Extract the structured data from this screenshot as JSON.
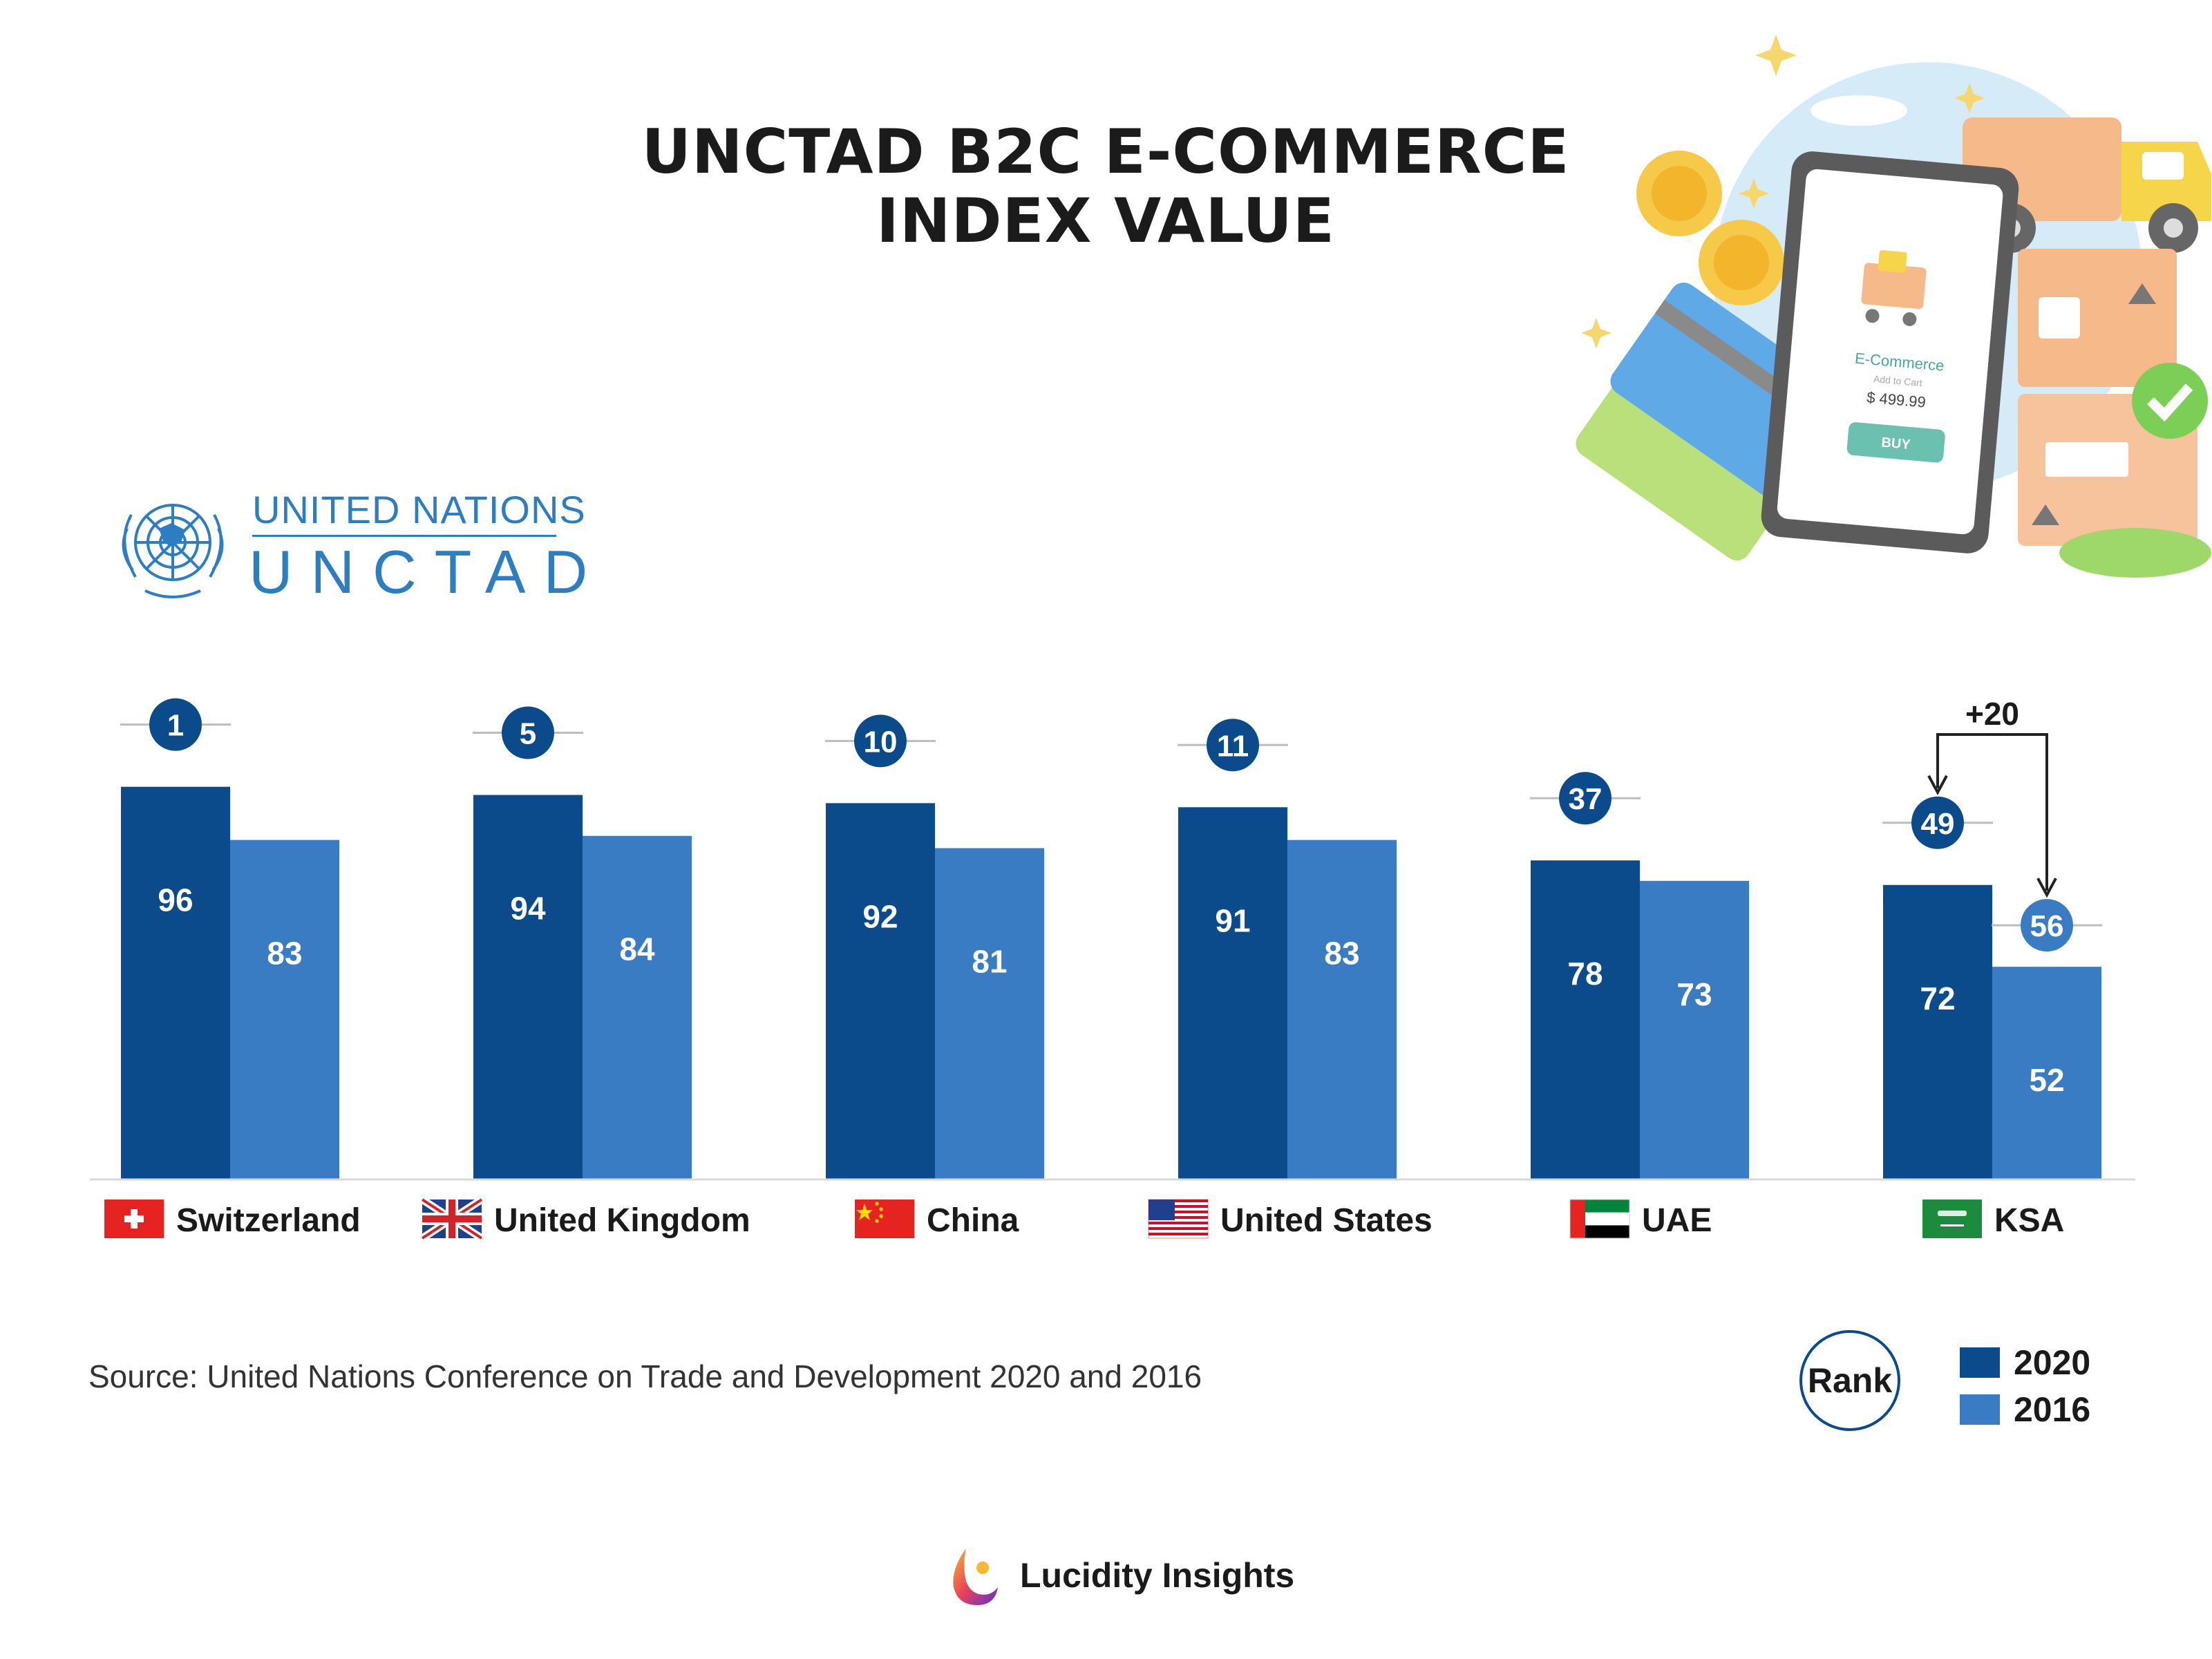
{
  "header": {
    "title_line1": "UNCTAD B2C E-COMMERCE",
    "title_line2": "INDEX VALUE"
  },
  "logo": {
    "line1": "UNITED NATIONS",
    "line2": "UNCTAD",
    "icon": "un-emblem-icon",
    "color": "#2d7dc1"
  },
  "illustration": {
    "phone_app_title": "E-Commerce",
    "phone_sub": "Add to Cart",
    "phone_price": "$ 499.99",
    "phone_button": "BUY"
  },
  "chart_data": {
    "type": "bar",
    "categories": [
      "Switzerland",
      "United Kingdom",
      "China",
      "United States",
      "UAE",
      "KSA"
    ],
    "flags": [
      "switzerland-flag-icon",
      "uk-flag-icon",
      "china-flag-icon",
      "usa-flag-icon",
      "uae-flag-icon",
      "ksa-flag-icon"
    ],
    "series": [
      {
        "name": "2020",
        "values": [
          96,
          94,
          92,
          91,
          78,
          72
        ],
        "color": "#0b4b8c"
      },
      {
        "name": "2016",
        "values": [
          83,
          84,
          81,
          83,
          73,
          52
        ],
        "color": "#3a7cc3"
      }
    ],
    "rank_2020": [
      "1",
      "5",
      "10",
      "11",
      "37",
      "49"
    ],
    "ksa_rank_2016": "56",
    "annotation": "+20",
    "ylim": [
      0,
      100
    ]
  },
  "legend": {
    "rank_label": "Rank",
    "items": [
      {
        "label": "2020",
        "color": "#0b4b8c"
      },
      {
        "label": "2016",
        "color": "#3a7cc3"
      }
    ]
  },
  "source": "Source: United Nations Conference on Trade and Development 2020 and 2016",
  "brand": {
    "name": "Lucidity Insights",
    "icon": "lucidity-logo-icon"
  }
}
